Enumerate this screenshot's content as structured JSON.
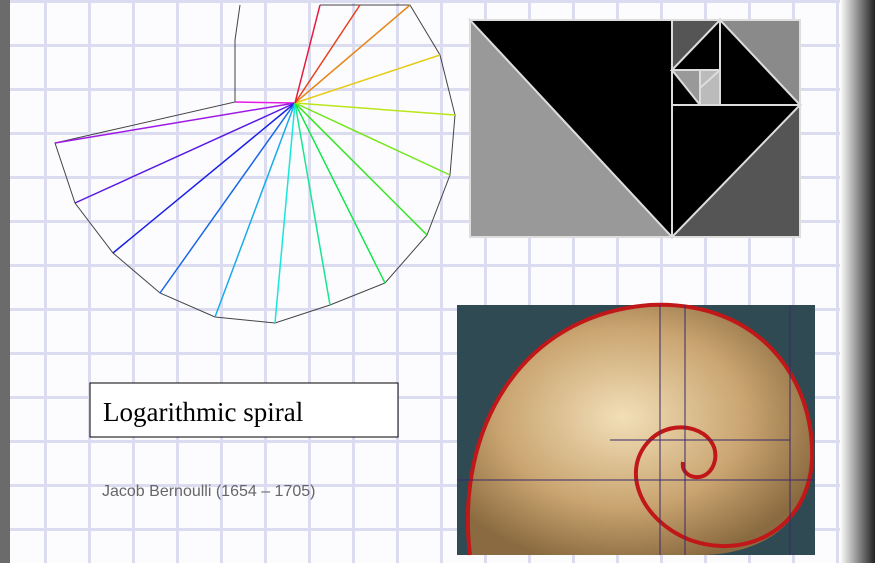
{
  "label_box": {
    "text": "Logarithmic spiral"
  },
  "caption": {
    "text": "Jacob Bernoulli (1654 – 1705)"
  }
}
